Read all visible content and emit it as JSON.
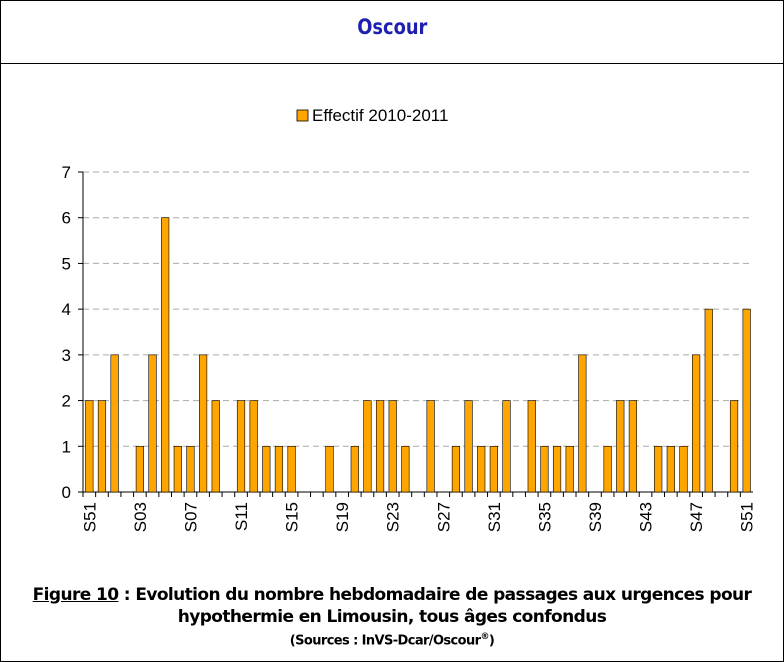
{
  "header": {
    "title": "Oscour"
  },
  "chart_data": {
    "type": "bar",
    "legend": "Effectif 2010-2011",
    "color": "#ffa500",
    "categories": [
      "S51",
      null,
      null,
      null,
      "S03",
      null,
      null,
      null,
      "S07",
      null,
      null,
      null,
      "S11",
      null,
      null,
      null,
      "S15",
      null,
      null,
      null,
      "S19",
      null,
      null,
      null,
      "S23",
      null,
      null,
      null,
      "S27",
      null,
      null,
      null,
      "S31",
      null,
      null,
      null,
      "S35",
      null,
      null,
      null,
      "S39",
      null,
      null,
      null,
      "S43",
      null,
      null,
      null,
      "S47",
      null,
      null,
      null,
      "S51"
    ],
    "values": [
      2,
      2,
      3,
      0,
      1,
      3,
      6,
      1,
      1,
      3,
      2,
      0,
      2,
      2,
      1,
      1,
      1,
      0,
      0,
      1,
      0,
      1,
      2,
      2,
      2,
      1,
      0,
      2,
      0,
      1,
      2,
      1,
      1,
      2,
      0,
      2,
      1,
      1,
      1,
      3,
      0,
      1,
      2,
      2,
      0,
      1,
      1,
      1,
      3,
      4,
      0,
      2,
      4
    ],
    "ylim": [
      0,
      7
    ],
    "yticks": [
      0,
      1,
      2,
      3,
      4,
      5,
      6,
      7
    ],
    "grid": true
  },
  "caption": {
    "figure": "Figure 10",
    "text": " : Evolution du nombre hebdomadaire de passages aux urgences pour hypothermie en Limousin, tous âges confondus",
    "source": "(Sources : InVS-Dcar/Oscour",
    "source_mark": "®",
    "source_end": ")"
  }
}
